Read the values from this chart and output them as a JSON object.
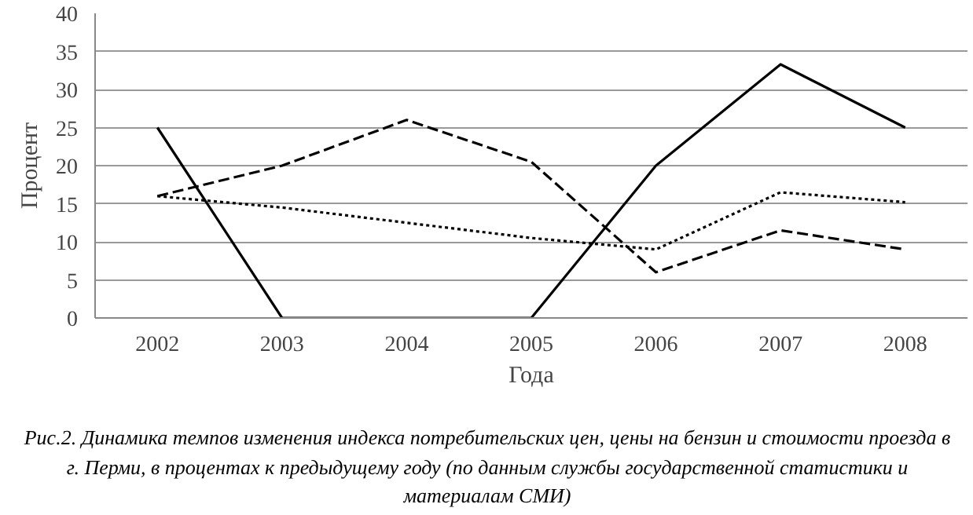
{
  "chart_data": {
    "type": "line",
    "ylabel": "Процент",
    "xlabel": "Года",
    "categories": [
      "2002",
      "2003",
      "2004",
      "2005",
      "2006",
      "2007",
      "2008"
    ],
    "series": [
      {
        "color": "#000000",
        "line_style": "solid",
        "values": [
          25,
          0,
          0,
          0,
          20,
          33.3,
          25
        ]
      },
      {
        "color": "#000000",
        "line_style": "dashed",
        "values": [
          16,
          20,
          26,
          20.5,
          6,
          11.5,
          9
        ]
      },
      {
        "color": "#000000",
        "line_style": "dotted",
        "values": [
          16,
          14.5,
          12.5,
          10.5,
          9,
          16.5,
          15.2
        ]
      }
    ],
    "ylim": [
      0,
      40
    ],
    "yticks": [
      0,
      5,
      10,
      15,
      20,
      25,
      30,
      35,
      40
    ],
    "grid": "y",
    "annotations": [
      "Рис.2. Динамика темпов изменения индекса потребительских цен, цены на бензин и стоимости проезда в г. Перми, в процентах к предыдущему году (по данным службы государственной статистики и материалам СМИ)"
    ]
  }
}
